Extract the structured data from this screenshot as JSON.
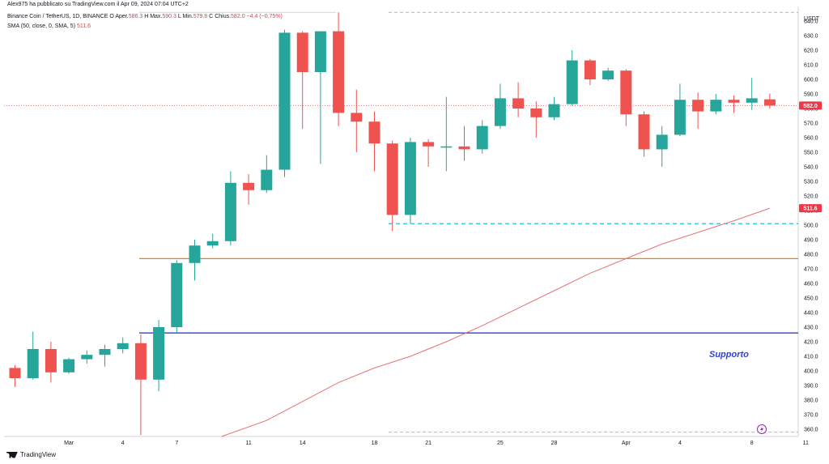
{
  "header": {
    "published": "Alex975 ha pubblicato su TradingView.com il Apr 09, 2024 07:04 UTC+2",
    "symbol": "Binance Coin / TetherUS, 1D, BINANCE",
    "o_label": "O",
    "open_label": "Aper.",
    "open": "586.3",
    "h_label": "H",
    "high_label": "Max.",
    "high": "590.3",
    "l_label": "L",
    "low_label": "Min.",
    "low": "579.8",
    "c_label": "C",
    "close_label": "Chius.",
    "close": "582.0",
    "change": "−4.4 (−0.75%)",
    "indicator": "SMA (50, close, 0, SMA, 5)",
    "indicator_value": "511.6"
  },
  "footer": {
    "brand": "TradingView"
  },
  "colors": {
    "up": "#26a69a",
    "down": "#ef5350",
    "support": "#2e3fd6",
    "resistance": "#f57c00",
    "sma": "#e57373",
    "dashed": "#00bcd4",
    "price_tag": "#f23645"
  },
  "chart_data": {
    "type": "candlestick",
    "ylim": [
      355,
      650
    ],
    "currency": "USDT",
    "yticks": [
      360,
      370,
      380,
      390,
      400,
      410,
      420,
      430,
      440,
      450,
      460,
      470,
      480,
      490,
      500,
      510,
      520,
      530,
      540,
      550,
      560,
      570,
      580,
      590,
      600,
      610,
      620,
      630,
      640
    ],
    "xticks": [
      {
        "i": 3,
        "label": "Mar"
      },
      {
        "i": 6,
        "label": "4"
      },
      {
        "i": 9,
        "label": "7"
      },
      {
        "i": 13,
        "label": "11"
      },
      {
        "i": 16,
        "label": "14"
      },
      {
        "i": 20,
        "label": "18"
      },
      {
        "i": 23,
        "label": "21"
      },
      {
        "i": 27,
        "label": "25"
      },
      {
        "i": 30,
        "label": "28"
      },
      {
        "i": 34,
        "label": "Apr"
      },
      {
        "i": 37,
        "label": "4"
      },
      {
        "i": 41,
        "label": "8"
      },
      {
        "i": 44,
        "label": "11"
      }
    ],
    "candles": [
      {
        "o": 402,
        "h": 404,
        "l": 389,
        "c": 395
      },
      {
        "o": 395,
        "h": 427,
        "l": 394,
        "c": 415
      },
      {
        "o": 415,
        "h": 420,
        "l": 392,
        "c": 399
      },
      {
        "o": 399,
        "h": 409,
        "l": 398,
        "c": 408
      },
      {
        "o": 408,
        "h": 414,
        "l": 405,
        "c": 411
      },
      {
        "o": 411,
        "h": 418,
        "l": 403,
        "c": 415
      },
      {
        "o": 415,
        "h": 423,
        "l": 412,
        "c": 419
      },
      {
        "o": 419,
        "h": 425,
        "l": 356,
        "c": 394
      },
      {
        "o": 394,
        "h": 435,
        "l": 386,
        "c": 430
      },
      {
        "o": 430,
        "h": 476,
        "l": 426,
        "c": 474
      },
      {
        "o": 474,
        "h": 490,
        "l": 462,
        "c": 486
      },
      {
        "o": 486,
        "h": 494,
        "l": 484,
        "c": 489
      },
      {
        "o": 489,
        "h": 537,
        "l": 486,
        "c": 529
      },
      {
        "o": 529,
        "h": 535,
        "l": 514,
        "c": 524
      },
      {
        "o": 524,
        "h": 548,
        "l": 522,
        "c": 538
      },
      {
        "o": 538,
        "h": 634,
        "l": 533,
        "c": 632
      },
      {
        "o": 632,
        "h": 633,
        "l": 566,
        "c": 605
      },
      {
        "o": 605,
        "h": 633,
        "l": 542,
        "c": 633
      },
      {
        "o": 633,
        "h": 646,
        "l": 568,
        "c": 577
      },
      {
        "o": 577,
        "h": 593,
        "l": 550,
        "c": 571
      },
      {
        "o": 571,
        "h": 578,
        "l": 537,
        "c": 556
      },
      {
        "o": 556,
        "h": 558,
        "l": 496,
        "c": 507
      },
      {
        "o": 507,
        "h": 560,
        "l": 501,
        "c": 557
      },
      {
        "o": 557,
        "h": 559,
        "l": 540,
        "c": 554
      },
      {
        "o": 554,
        "h": 588,
        "l": 537,
        "c": 554
      },
      {
        "o": 554,
        "h": 568,
        "l": 544,
        "c": 552
      },
      {
        "o": 552,
        "h": 572,
        "l": 549,
        "c": 568
      },
      {
        "o": 568,
        "h": 597,
        "l": 566,
        "c": 587
      },
      {
        "o": 587,
        "h": 598,
        "l": 574,
        "c": 580
      },
      {
        "o": 580,
        "h": 585,
        "l": 560,
        "c": 574
      },
      {
        "o": 574,
        "h": 588,
        "l": 572,
        "c": 583
      },
      {
        "o": 583,
        "h": 620,
        "l": 582,
        "c": 613
      },
      {
        "o": 613,
        "h": 614,
        "l": 596,
        "c": 600
      },
      {
        "o": 600,
        "h": 608,
        "l": 599,
        "c": 606
      },
      {
        "o": 606,
        "h": 607,
        "l": 568,
        "c": 576
      },
      {
        "o": 576,
        "h": 578,
        "l": 547,
        "c": 552
      },
      {
        "o": 552,
        "h": 568,
        "l": 540,
        "c": 562
      },
      {
        "o": 562,
        "h": 597,
        "l": 561,
        "c": 586
      },
      {
        "o": 586,
        "h": 591,
        "l": 566,
        "c": 578
      },
      {
        "o": 578,
        "h": 590,
        "l": 576,
        "c": 586
      },
      {
        "o": 586,
        "h": 589,
        "l": 577,
        "c": 584
      },
      {
        "o": 584,
        "h": 601,
        "l": 579,
        "c": 587
      },
      {
        "o": 586.3,
        "h": 590.3,
        "l": 579.8,
        "c": 582.0
      }
    ],
    "sma": [
      {
        "i": 11.5,
        "v": 355
      },
      {
        "i": 14,
        "v": 366
      },
      {
        "i": 16,
        "v": 379
      },
      {
        "i": 18,
        "v": 392
      },
      {
        "i": 20,
        "v": 402
      },
      {
        "i": 22,
        "v": 410
      },
      {
        "i": 24,
        "v": 420
      },
      {
        "i": 26,
        "v": 431
      },
      {
        "i": 28,
        "v": 443
      },
      {
        "i": 30,
        "v": 455
      },
      {
        "i": 32,
        "v": 467
      },
      {
        "i": 34,
        "v": 477
      },
      {
        "i": 36,
        "v": 487
      },
      {
        "i": 38,
        "v": 495
      },
      {
        "i": 40,
        "v": 503
      },
      {
        "i": 42,
        "v": 511.6
      }
    ],
    "levels": {
      "support": {
        "value": 426,
        "label": "Supporto"
      },
      "orange": {
        "value": 477
      },
      "dashed_cyan": {
        "value": 501
      },
      "top_dashed": {
        "value": 646
      },
      "bottom_dashed": {
        "value": 358
      },
      "current_price": {
        "value": 582,
        "label": "582.0"
      },
      "sma_tag": {
        "value": 511.6,
        "label": "511.6"
      }
    }
  }
}
